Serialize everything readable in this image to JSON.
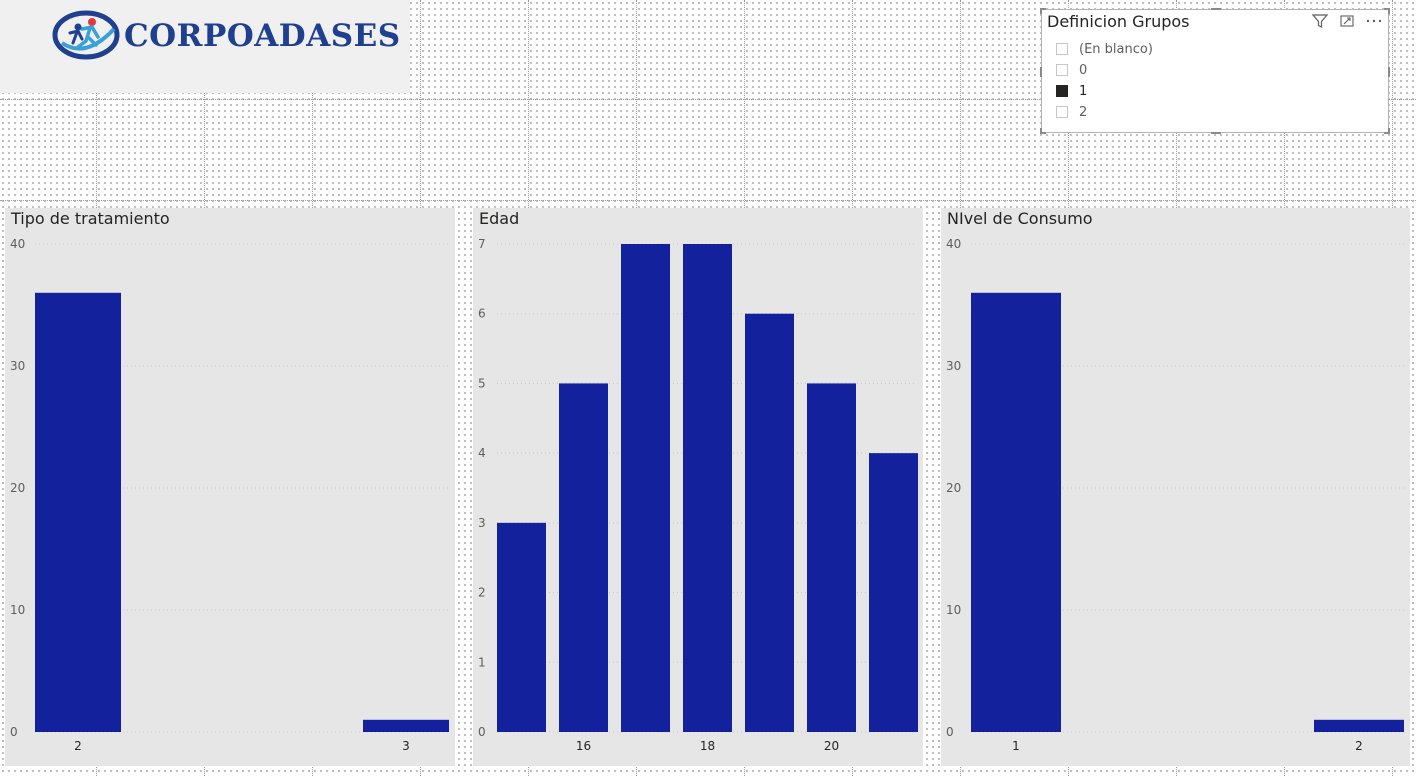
{
  "logo": {
    "text": "CORPOADASES"
  },
  "slicer": {
    "title": "Definicion Grupos",
    "icons": [
      "filter-icon",
      "focus-mode-icon",
      "more-options-icon"
    ],
    "items": [
      {
        "label": "(En blanco)",
        "checked": false
      },
      {
        "label": "0",
        "checked": false
      },
      {
        "label": "1",
        "checked": true
      },
      {
        "label": "2",
        "checked": false
      }
    ]
  },
  "colors": {
    "bar": "#13229c",
    "panel_bg": "#e6e6e6",
    "gridline": "#c8c8c8"
  },
  "chart_data": [
    {
      "id": "tipo",
      "type": "bar",
      "title": "Tipo de tratamiento",
      "categories": [
        "2",
        "3"
      ],
      "x_tick_labels": [
        "2",
        "3"
      ],
      "values": [
        36,
        1
      ],
      "ylim": [
        0,
        40
      ],
      "yticks": [
        0,
        10,
        20,
        30,
        40
      ],
      "grid": true
    },
    {
      "id": "edad",
      "type": "bar",
      "title": "Edad",
      "categories": [
        "15",
        "16",
        "17",
        "18",
        "19",
        "20",
        "21"
      ],
      "x_tick_labels": [
        "",
        "16",
        "",
        "18",
        "",
        "20",
        ""
      ],
      "values": [
        3,
        5,
        7,
        7,
        6,
        5,
        4
      ],
      "ylim": [
        0,
        7
      ],
      "yticks": [
        0,
        1,
        2,
        3,
        4,
        5,
        6,
        7
      ],
      "grid": true
    },
    {
      "id": "nivel",
      "type": "bar",
      "title": "NIvel de Consumo",
      "categories": [
        "1",
        "2"
      ],
      "x_tick_labels": [
        "1",
        "2"
      ],
      "values": [
        36,
        1
      ],
      "ylim": [
        0,
        40
      ],
      "yticks": [
        0,
        10,
        20,
        30,
        40
      ],
      "grid": true
    }
  ]
}
